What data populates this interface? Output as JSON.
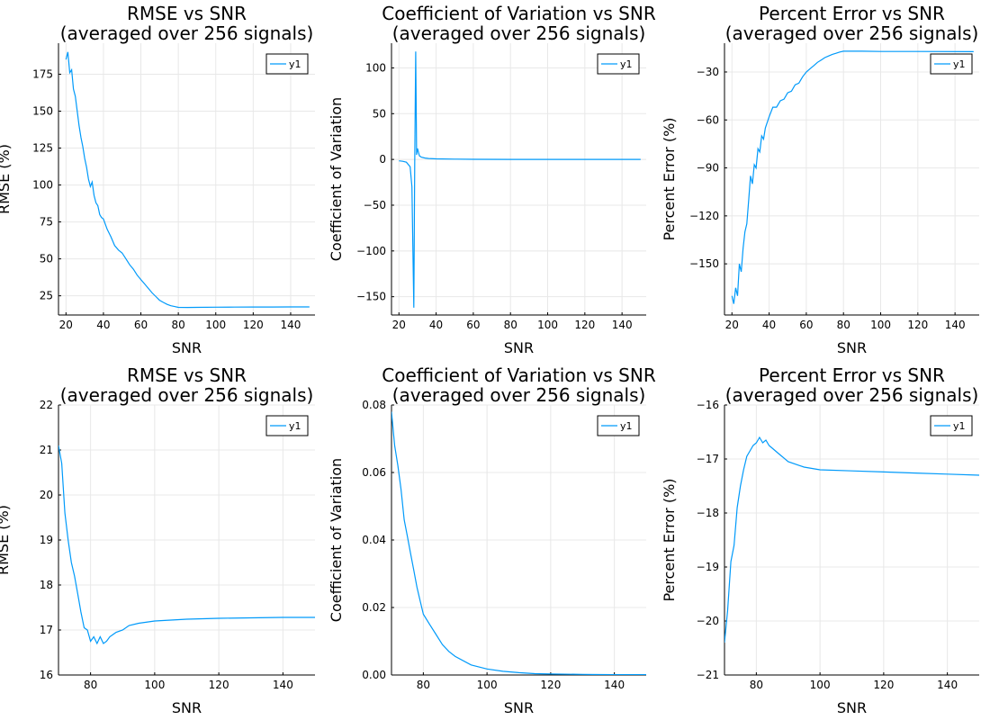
{
  "figure": {
    "colors": {
      "series": "#009AFA",
      "grid": "#E8E8E8",
      "axis": "#000000",
      "legend_border": "#000000"
    }
  },
  "chart_data": [
    {
      "type": "line",
      "title": "RMSE vs SNR\n(averaged over 256 signals)",
      "xlabel": "SNR",
      "ylabel": "RMSE (%)",
      "xlim": [
        16,
        153
      ],
      "ylim": [
        12,
        196
      ],
      "xticks": [
        20,
        40,
        60,
        80,
        100,
        120,
        140
      ],
      "yticks": [
        25,
        50,
        75,
        100,
        125,
        150,
        175
      ],
      "grid": true,
      "legend": "top-right",
      "series": [
        {
          "name": "y1",
          "x": [
            20,
            21,
            22,
            23,
            24,
            25,
            26,
            27,
            28,
            29,
            30,
            31,
            32,
            33,
            34,
            35,
            36,
            37,
            38,
            39,
            40,
            42,
            44,
            46,
            48,
            50,
            52,
            54,
            56,
            58,
            60,
            62,
            64,
            66,
            68,
            70,
            72,
            74,
            76,
            78,
            80,
            85,
            90,
            100,
            110,
            120,
            130,
            140,
            150
          ],
          "y": [
            185,
            190,
            176,
            178,
            165,
            160,
            150,
            140,
            132,
            126,
            118,
            112,
            104,
            99,
            102,
            93,
            88,
            86,
            80,
            78,
            77,
            70,
            65,
            59,
            56,
            54,
            50,
            46,
            43,
            39,
            36,
            33,
            30,
            27,
            24.5,
            22,
            20.5,
            19.2,
            18.3,
            17.7,
            17.2,
            17.1,
            17.2,
            17.3,
            17.35,
            17.4,
            17.45,
            17.5,
            17.5
          ]
        }
      ]
    },
    {
      "type": "line",
      "title": "Coefficient of Variation vs SNR\n(averaged over 256 signals)",
      "xlabel": "SNR",
      "ylabel": "Coefficient of Variation",
      "xlim": [
        16,
        153
      ],
      "ylim": [
        -170,
        127
      ],
      "xticks": [
        20,
        40,
        60,
        80,
        100,
        120,
        140
      ],
      "yticks": [
        -150,
        -100,
        -50,
        0,
        50,
        100
      ],
      "grid": true,
      "legend": "top-right",
      "series": [
        {
          "name": "y1",
          "x": [
            20,
            22,
            24,
            26,
            27,
            27.5,
            28,
            28.5,
            29,
            29.5,
            30,
            31,
            32,
            34,
            36,
            40,
            50,
            60,
            80,
            100,
            150
          ],
          "y": [
            -1.5,
            -2,
            -3,
            -8,
            -30,
            -100,
            -162,
            -5,
            118,
            5,
            12,
            4,
            2.5,
            1.5,
            1,
            0.6,
            0.3,
            0.1,
            0.01,
            0.002,
            0.0
          ]
        }
      ]
    },
    {
      "type": "line",
      "title": "Percent Error vs SNR\n(averaged over 256 signals)",
      "xlabel": "SNR",
      "ylabel": "Percent Error (%)",
      "xlim": [
        16,
        153
      ],
      "ylim": [
        -182,
        -12
      ],
      "xticks": [
        20,
        40,
        60,
        80,
        100,
        120,
        140
      ],
      "yticks": [
        -150,
        -120,
        -90,
        -60,
        -30
      ],
      "grid": true,
      "legend": "top-right",
      "series": [
        {
          "name": "y1",
          "x": [
            20,
            21,
            22,
            23,
            24,
            25,
            26,
            27,
            28,
            29,
            30,
            31,
            32,
            33,
            34,
            35,
            36,
            37,
            38,
            40,
            42,
            44,
            46,
            48,
            50,
            52,
            54,
            56,
            58,
            60,
            62,
            64,
            66,
            68,
            70,
            72,
            74,
            76,
            78,
            80,
            90,
            100,
            120,
            150
          ],
          "y": [
            -170,
            -175,
            -165,
            -170,
            -150,
            -155,
            -140,
            -130,
            -125,
            -110,
            -95,
            -100,
            -88,
            -90,
            -78,
            -80,
            -70,
            -72,
            -65,
            -58,
            -52,
            -52,
            -48,
            -47,
            -43,
            -42,
            -38,
            -37,
            -33,
            -30,
            -28,
            -26,
            -24,
            -22.5,
            -21,
            -20,
            -19,
            -18.3,
            -17.5,
            -17,
            -17,
            -17.2,
            -17.2,
            -17.3
          ]
        }
      ]
    },
    {
      "type": "line",
      "title": "RMSE vs SNR\n(averaged over 256 signals)",
      "xlabel": "SNR",
      "ylabel": "RMSE (%)",
      "xlim": [
        70,
        150
      ],
      "ylim": [
        16,
        22
      ],
      "xticks": [
        80,
        100,
        120,
        140
      ],
      "yticks": [
        16,
        17,
        18,
        19,
        20,
        21,
        22
      ],
      "grid": true,
      "legend": "top-right",
      "series": [
        {
          "name": "y1",
          "x": [
            70,
            71,
            72,
            73,
            74,
            75,
            76,
            77,
            78,
            79,
            80,
            81,
            82,
            83,
            84,
            85,
            86,
            87,
            88,
            90,
            92,
            95,
            100,
            105,
            110,
            120,
            130,
            140,
            150
          ],
          "y": [
            21.1,
            20.7,
            19.6,
            19.0,
            18.5,
            18.2,
            17.8,
            17.4,
            17.05,
            17.0,
            16.75,
            16.85,
            16.7,
            16.85,
            16.7,
            16.75,
            16.85,
            16.9,
            16.95,
            17.0,
            17.1,
            17.15,
            17.2,
            17.22,
            17.24,
            17.26,
            17.27,
            17.28,
            17.28
          ]
        }
      ]
    },
    {
      "type": "line",
      "title": "Coefficient of Variation vs SNR\n(averaged over 256 signals)",
      "xlabel": "SNR",
      "ylabel": "Coefficient of Variation",
      "xlim": [
        70,
        150
      ],
      "ylim": [
        0.0,
        0.08
      ],
      "xticks": [
        80,
        100,
        120,
        140
      ],
      "yticks": [
        0.0,
        0.02,
        0.04,
        0.06,
        0.08
      ],
      "grid": true,
      "legend": "top-right",
      "series": [
        {
          "name": "y1",
          "x": [
            70,
            71,
            72,
            73,
            74,
            75,
            76,
            77,
            78,
            79,
            80,
            82,
            84,
            86,
            88,
            90,
            95,
            100,
            105,
            110,
            115,
            120,
            130,
            140,
            150
          ],
          "y": [
            0.078,
            0.068,
            0.062,
            0.055,
            0.046,
            0.041,
            0.036,
            0.031,
            0.026,
            0.022,
            0.018,
            0.015,
            0.012,
            0.009,
            0.007,
            0.0055,
            0.003,
            0.0018,
            0.0011,
            0.0007,
            0.0004,
            0.0003,
            0.0002,
            0.0001,
            0.0001
          ]
        }
      ]
    },
    {
      "type": "line",
      "title": "Percent Error vs SNR\n(averaged over 256 signals)",
      "xlabel": "SNR",
      "ylabel": "Percent Error (%)",
      "xlim": [
        70,
        150
      ],
      "ylim": [
        -21,
        -16
      ],
      "xticks": [
        80,
        100,
        120,
        140
      ],
      "yticks": [
        -21,
        -20,
        -19,
        -18,
        -17,
        -16
      ],
      "grid": true,
      "legend": "top-right",
      "series": [
        {
          "name": "y1",
          "x": [
            70,
            71,
            72,
            73,
            74,
            75,
            76,
            77,
            78,
            79,
            80,
            81,
            82,
            83,
            84,
            85,
            86,
            87,
            88,
            90,
            95,
            100,
            110,
            120,
            130,
            140,
            150
          ],
          "y": [
            -20.4,
            -19.8,
            -18.9,
            -18.6,
            -17.9,
            -17.5,
            -17.2,
            -16.95,
            -16.85,
            -16.75,
            -16.7,
            -16.6,
            -16.7,
            -16.65,
            -16.75,
            -16.8,
            -16.85,
            -16.9,
            -16.95,
            -17.05,
            -17.15,
            -17.2,
            -17.22,
            -17.24,
            -17.26,
            -17.28,
            -17.3
          ]
        }
      ]
    }
  ]
}
